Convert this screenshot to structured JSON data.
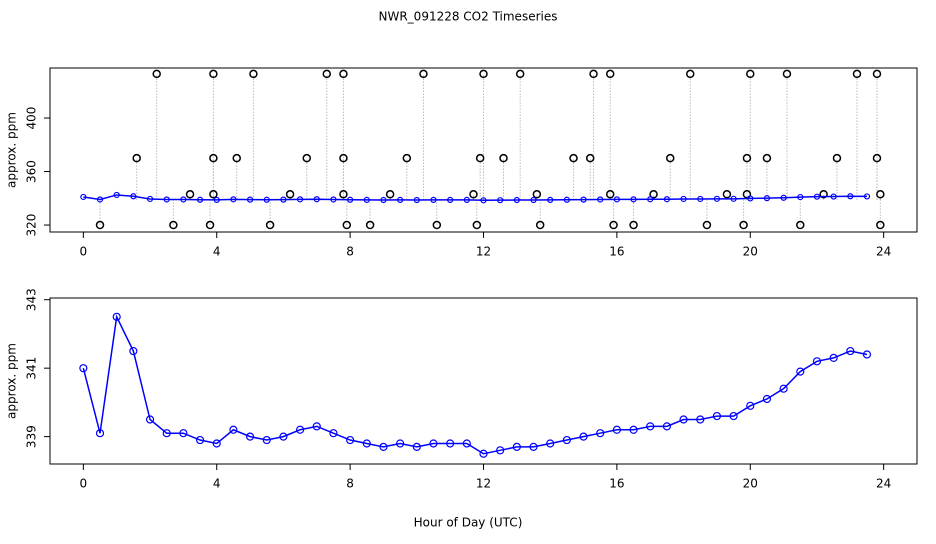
{
  "chart_data": [
    {
      "type": "line",
      "title": "NWR_091228  CO2 Timeseries",
      "ylabel": "approx. ppm",
      "x": [
        0,
        0.5,
        1,
        1.5,
        2,
        2.5,
        3,
        3.5,
        4,
        4.5,
        5,
        5.5,
        6,
        6.5,
        7,
        7.5,
        8,
        8.5,
        9,
        9.5,
        10,
        10.5,
        11,
        11.5,
        12,
        12.5,
        13,
        13.5,
        14,
        14.5,
        15,
        15.5,
        16,
        16.5,
        17,
        17.5,
        18,
        18.5,
        19,
        19.5,
        20,
        20.5,
        21,
        21.5,
        22,
        22.5,
        23,
        23.5
      ],
      "series": [
        {
          "color": "#0000ff",
          "values": [
            341.0,
            339.1,
            342.5,
            341.5,
            339.5,
            339.1,
            339.1,
            338.9,
            338.8,
            339.2,
            339.0,
            338.9,
            339.0,
            339.2,
            339.3,
            339.1,
            338.9,
            338.8,
            338.7,
            338.8,
            338.7,
            338.8,
            338.8,
            338.8,
            338.5,
            338.6,
            338.7,
            338.7,
            338.8,
            338.9,
            339.0,
            339.1,
            339.2,
            339.2,
            339.3,
            339.3,
            339.5,
            339.5,
            339.6,
            339.6,
            339.9,
            340.1,
            340.4,
            340.9,
            341.2,
            341.3,
            341.5,
            341.4
          ]
        }
      ],
      "outliers": {
        "color": "#000000",
        "x": [
          2.2,
          3.9,
          5.1,
          7.3,
          7.8,
          10.2,
          12.0,
          13.1,
          15.3,
          15.8,
          18.2,
          20.0,
          21.1,
          23.2,
          23.8,
          1.6,
          3.9,
          4.6,
          6.7,
          7.8,
          9.7,
          11.9,
          12.6,
          14.7,
          15.2,
          17.6,
          19.9,
          20.5,
          22.6,
          23.8,
          3.2,
          3.9,
          6.2,
          7.8,
          9.2,
          11.7,
          13.6,
          15.8,
          17.1,
          19.3,
          19.9,
          22.2,
          23.9,
          0.5,
          2.7,
          3.8,
          5.6,
          7.9,
          8.6,
          10.6,
          11.8,
          13.7,
          15.9,
          16.5,
          18.7,
          19.8,
          21.5,
          23.9
        ],
        "y": [
          433,
          433,
          433,
          433,
          433,
          433,
          433,
          433,
          433,
          433,
          433,
          433,
          433,
          433,
          433,
          370,
          370,
          370,
          370,
          370,
          370,
          370,
          370,
          370,
          370,
          370,
          370,
          370,
          370,
          370,
          343,
          343,
          343,
          343,
          343,
          343,
          343,
          343,
          343,
          343,
          343,
          343,
          343,
          320,
          320,
          320,
          320,
          320,
          320,
          320,
          320,
          320,
          320,
          320,
          320,
          320,
          320,
          320
        ]
      },
      "xlim": [
        -1,
        25
      ],
      "xticks": [
        0,
        4,
        8,
        12,
        16,
        20,
        24
      ],
      "ylim": [
        314.8,
        437.4
      ],
      "yticks": [
        320,
        360,
        400
      ]
    },
    {
      "type": "line",
      "ylabel": "approx. ppm",
      "xlabel": "Hour of Day (UTC)",
      "x": [
        0,
        0.5,
        1,
        1.5,
        2,
        2.5,
        3,
        3.5,
        4,
        4.5,
        5,
        5.5,
        6,
        6.5,
        7,
        7.5,
        8,
        8.5,
        9,
        9.5,
        10,
        10.5,
        11,
        11.5,
        12,
        12.5,
        13,
        13.5,
        14,
        14.5,
        15,
        15.5,
        16,
        16.5,
        17,
        17.5,
        18,
        18.5,
        19,
        19.5,
        20,
        20.5,
        21,
        21.5,
        22,
        22.5,
        23,
        23.5
      ],
      "series": [
        {
          "color": "#0000ff",
          "values": [
            341.0,
            339.1,
            342.5,
            341.5,
            339.5,
            339.1,
            339.1,
            338.9,
            338.8,
            339.2,
            339.0,
            338.9,
            339.0,
            339.2,
            339.3,
            339.1,
            338.9,
            338.8,
            338.7,
            338.8,
            338.7,
            338.8,
            338.8,
            338.8,
            338.5,
            338.6,
            338.7,
            338.7,
            338.8,
            338.9,
            339.0,
            339.1,
            339.2,
            339.2,
            339.3,
            339.3,
            339.5,
            339.5,
            339.6,
            339.6,
            339.9,
            340.1,
            340.4,
            340.9,
            341.2,
            341.3,
            341.5,
            341.4
          ]
        }
      ],
      "xlim": [
        -1,
        25
      ],
      "xticks": [
        0,
        4,
        8,
        12,
        16,
        20,
        24
      ],
      "ylim": [
        338.2,
        343.05
      ],
      "yticks": [
        339,
        341,
        343
      ]
    }
  ]
}
